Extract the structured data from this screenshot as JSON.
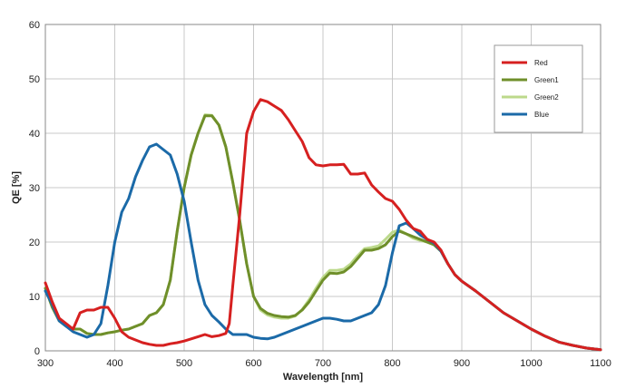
{
  "chart_data": {
    "type": "line",
    "xlabel": "Wavelength [nm]",
    "ylabel": "QE [%]",
    "xlim": [
      300,
      1100
    ],
    "ylim": [
      0,
      60
    ],
    "x_ticks": [
      300,
      400,
      500,
      600,
      700,
      800,
      900,
      1000,
      1100
    ],
    "y_ticks": [
      0,
      10,
      20,
      30,
      40,
      50,
      60
    ],
    "grid": true,
    "legend_position": "top-right",
    "series": [
      {
        "name": "Red",
        "color": "#d62020",
        "points": [
          [
            300,
            12.5
          ],
          [
            310,
            9
          ],
          [
            320,
            6
          ],
          [
            330,
            5
          ],
          [
            340,
            4
          ],
          [
            350,
            7
          ],
          [
            360,
            7.5
          ],
          [
            370,
            7.5
          ],
          [
            380,
            8
          ],
          [
            390,
            8
          ],
          [
            400,
            6
          ],
          [
            410,
            3.5
          ],
          [
            420,
            2.5
          ],
          [
            430,
            2
          ],
          [
            440,
            1.5
          ],
          [
            450,
            1.2
          ],
          [
            460,
            1
          ],
          [
            470,
            1
          ],
          [
            480,
            1.3
          ],
          [
            490,
            1.5
          ],
          [
            500,
            1.8
          ],
          [
            510,
            2.2
          ],
          [
            520,
            2.6
          ],
          [
            530,
            3
          ],
          [
            540,
            2.6
          ],
          [
            550,
            2.8
          ],
          [
            560,
            3.2
          ],
          [
            565,
            5
          ],
          [
            570,
            12
          ],
          [
            580,
            25
          ],
          [
            590,
            40
          ],
          [
            600,
            44
          ],
          [
            610,
            46.2
          ],
          [
            620,
            45.8
          ],
          [
            630,
            45
          ],
          [
            640,
            44.2
          ],
          [
            650,
            42.5
          ],
          [
            660,
            40.5
          ],
          [
            670,
            38.5
          ],
          [
            680,
            35.5
          ],
          [
            690,
            34.2
          ],
          [
            700,
            34
          ],
          [
            710,
            34.2
          ],
          [
            720,
            34.2
          ],
          [
            730,
            34.3
          ],
          [
            740,
            32.5
          ],
          [
            750,
            32.5
          ],
          [
            760,
            32.7
          ],
          [
            770,
            30.5
          ],
          [
            780,
            29.2
          ],
          [
            790,
            28
          ],
          [
            800,
            27.5
          ],
          [
            810,
            26
          ],
          [
            820,
            24
          ],
          [
            830,
            22.5
          ],
          [
            840,
            22
          ],
          [
            850,
            20.5
          ],
          [
            860,
            20
          ],
          [
            870,
            18.5
          ],
          [
            880,
            16
          ],
          [
            890,
            14
          ],
          [
            900,
            12.8
          ],
          [
            920,
            11
          ],
          [
            940,
            9
          ],
          [
            960,
            7
          ],
          [
            980,
            5.5
          ],
          [
            1000,
            4
          ],
          [
            1020,
            2.7
          ],
          [
            1040,
            1.6
          ],
          [
            1060,
            1
          ],
          [
            1080,
            0.5
          ],
          [
            1100,
            0.2
          ]
        ]
      },
      {
        "name": "Green1",
        "color": "#6f8f2a",
        "points": [
          [
            300,
            11.5
          ],
          [
            310,
            8
          ],
          [
            320,
            5.5
          ],
          [
            330,
            4.5
          ],
          [
            340,
            4
          ],
          [
            350,
            4
          ],
          [
            360,
            3.2
          ],
          [
            370,
            3
          ],
          [
            380,
            3
          ],
          [
            390,
            3.3
          ],
          [
            400,
            3.5
          ],
          [
            410,
            3.8
          ],
          [
            420,
            4
          ],
          [
            430,
            4.5
          ],
          [
            440,
            5
          ],
          [
            450,
            6.5
          ],
          [
            460,
            7
          ],
          [
            470,
            8.5
          ],
          [
            480,
            13
          ],
          [
            490,
            22
          ],
          [
            500,
            30
          ],
          [
            510,
            36
          ],
          [
            520,
            40
          ],
          [
            530,
            43.2
          ],
          [
            540,
            43.2
          ],
          [
            550,
            41.5
          ],
          [
            560,
            37.5
          ],
          [
            570,
            31
          ],
          [
            580,
            24
          ],
          [
            590,
            16
          ],
          [
            600,
            10
          ],
          [
            610,
            7.8
          ],
          [
            620,
            6.9
          ],
          [
            630,
            6.5
          ],
          [
            640,
            6.3
          ],
          [
            650,
            6.2
          ],
          [
            660,
            6.5
          ],
          [
            670,
            7.5
          ],
          [
            680,
            9
          ],
          [
            690,
            11
          ],
          [
            700,
            13
          ],
          [
            710,
            14.3
          ],
          [
            720,
            14.2
          ],
          [
            730,
            14.5
          ],
          [
            740,
            15.5
          ],
          [
            750,
            17
          ],
          [
            760,
            18.5
          ],
          [
            770,
            18.5
          ],
          [
            780,
            18.8
          ],
          [
            790,
            19.5
          ],
          [
            800,
            21
          ],
          [
            810,
            22
          ],
          [
            820,
            21.5
          ],
          [
            830,
            21
          ],
          [
            840,
            20.5
          ],
          [
            850,
            20
          ],
          [
            860,
            19.5
          ],
          [
            870,
            18.3
          ],
          [
            880,
            16
          ],
          [
            890,
            14
          ],
          [
            900,
            12.8
          ],
          [
            920,
            11
          ],
          [
            940,
            9
          ],
          [
            960,
            7
          ],
          [
            980,
            5.5
          ],
          [
            1000,
            4
          ],
          [
            1020,
            2.7
          ],
          [
            1040,
            1.6
          ],
          [
            1060,
            1
          ],
          [
            1080,
            0.5
          ],
          [
            1100,
            0.2
          ]
        ]
      },
      {
        "name": "Green2",
        "color": "#bcd98b",
        "points": [
          [
            300,
            11.5
          ],
          [
            310,
            8
          ],
          [
            320,
            5.5
          ],
          [
            330,
            4.5
          ],
          [
            340,
            4
          ],
          [
            350,
            4
          ],
          [
            360,
            3.2
          ],
          [
            370,
            3
          ],
          [
            380,
            3
          ],
          [
            390,
            3.3
          ],
          [
            400,
            3.5
          ],
          [
            410,
            3.8
          ],
          [
            420,
            4
          ],
          [
            430,
            4.5
          ],
          [
            440,
            5
          ],
          [
            450,
            6.5
          ],
          [
            460,
            7
          ],
          [
            470,
            8.5
          ],
          [
            480,
            13
          ],
          [
            490,
            22
          ],
          [
            500,
            30
          ],
          [
            510,
            36
          ],
          [
            520,
            40
          ],
          [
            530,
            43.4
          ],
          [
            540,
            43.3
          ],
          [
            550,
            41.5
          ],
          [
            560,
            37.5
          ],
          [
            570,
            31
          ],
          [
            580,
            24
          ],
          [
            590,
            16
          ],
          [
            600,
            10
          ],
          [
            610,
            7.5
          ],
          [
            620,
            6.6
          ],
          [
            630,
            6.2
          ],
          [
            640,
            6
          ],
          [
            650,
            6
          ],
          [
            660,
            6.4
          ],
          [
            670,
            7.6
          ],
          [
            680,
            9.4
          ],
          [
            690,
            11.5
          ],
          [
            700,
            13.5
          ],
          [
            710,
            14.8
          ],
          [
            720,
            14.8
          ],
          [
            730,
            15
          ],
          [
            740,
            16
          ],
          [
            750,
            17.5
          ],
          [
            760,
            18.8
          ],
          [
            770,
            19
          ],
          [
            780,
            19.3
          ],
          [
            790,
            20.5
          ],
          [
            800,
            21.8
          ],
          [
            810,
            22.2
          ],
          [
            820,
            21.5
          ],
          [
            830,
            20.7
          ],
          [
            840,
            20.3
          ],
          [
            850,
            20
          ],
          [
            860,
            19.5
          ],
          [
            870,
            18.3
          ],
          [
            880,
            16
          ],
          [
            890,
            14
          ],
          [
            900,
            12.8
          ],
          [
            920,
            11
          ],
          [
            940,
            9
          ],
          [
            960,
            7
          ],
          [
            980,
            5.5
          ],
          [
            1000,
            4
          ],
          [
            1020,
            2.7
          ],
          [
            1040,
            1.6
          ],
          [
            1060,
            1
          ],
          [
            1080,
            0.5
          ],
          [
            1100,
            0.2
          ]
        ]
      },
      {
        "name": "Blue",
        "color": "#1b6aa8",
        "points": [
          [
            300,
            11
          ],
          [
            310,
            8.5
          ],
          [
            320,
            5.5
          ],
          [
            330,
            4.5
          ],
          [
            340,
            3.5
          ],
          [
            350,
            3
          ],
          [
            360,
            2.5
          ],
          [
            370,
            3
          ],
          [
            380,
            5
          ],
          [
            390,
            12
          ],
          [
            400,
            20
          ],
          [
            410,
            25.5
          ],
          [
            420,
            28
          ],
          [
            430,
            32
          ],
          [
            440,
            35
          ],
          [
            450,
            37.5
          ],
          [
            460,
            38
          ],
          [
            470,
            37
          ],
          [
            480,
            36
          ],
          [
            490,
            32.5
          ],
          [
            500,
            27.5
          ],
          [
            510,
            20
          ],
          [
            520,
            13
          ],
          [
            530,
            8.5
          ],
          [
            540,
            6.5
          ],
          [
            550,
            5.3
          ],
          [
            560,
            4
          ],
          [
            570,
            3
          ],
          [
            580,
            3
          ],
          [
            590,
            3
          ],
          [
            600,
            2.5
          ],
          [
            610,
            2.3
          ],
          [
            620,
            2.2
          ],
          [
            630,
            2.5
          ],
          [
            640,
            3
          ],
          [
            650,
            3.5
          ],
          [
            660,
            4
          ],
          [
            670,
            4.5
          ],
          [
            680,
            5
          ],
          [
            690,
            5.5
          ],
          [
            700,
            6
          ],
          [
            710,
            6
          ],
          [
            720,
            5.8
          ],
          [
            730,
            5.5
          ],
          [
            740,
            5.5
          ],
          [
            750,
            6
          ],
          [
            760,
            6.5
          ],
          [
            770,
            7
          ],
          [
            780,
            8.5
          ],
          [
            790,
            12
          ],
          [
            800,
            18
          ],
          [
            810,
            23
          ],
          [
            820,
            23.5
          ],
          [
            830,
            22.5
          ],
          [
            840,
            21.3
          ],
          [
            850,
            20.5
          ],
          [
            860,
            19.8
          ],
          [
            870,
            18.3
          ],
          [
            880,
            16
          ],
          [
            890,
            14
          ],
          [
            900,
            12.8
          ],
          [
            920,
            11
          ],
          [
            940,
            9
          ],
          [
            960,
            7
          ],
          [
            980,
            5.5
          ],
          [
            1000,
            4
          ],
          [
            1020,
            2.7
          ],
          [
            1040,
            1.6
          ],
          [
            1060,
            1
          ],
          [
            1080,
            0.5
          ],
          [
            1100,
            0.2
          ]
        ]
      }
    ]
  }
}
